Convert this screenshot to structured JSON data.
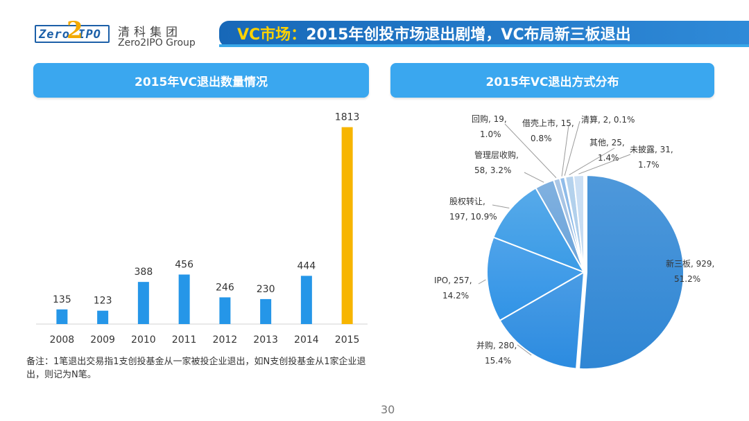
{
  "logo": {
    "mark_text": "Zero",
    "mark_two": "2",
    "mark_ipo": "IPO",
    "cn": "清科集团",
    "en": "Zero2IPO Group"
  },
  "header": {
    "title_highlight": "VC市场：",
    "title_rest": "2015年创投市场退出剧增，VC布局新三板退出"
  },
  "colors": {
    "bar": "#2596e8",
    "bar_highlight": "#f7b500",
    "header_blue": "#3aa7ef",
    "title_blue": "#1768b8"
  },
  "left_panel": {
    "title": "2015年VC退出数量情况"
  },
  "right_panel": {
    "title": "2015年VC退出方式分布"
  },
  "chart_data": [
    {
      "type": "bar",
      "categories": [
        "2008",
        "2009",
        "2010",
        "2011",
        "2012",
        "2013",
        "2014",
        "2015"
      ],
      "values": [
        135,
        123,
        388,
        456,
        246,
        230,
        444,
        1813
      ],
      "highlight_index": 7,
      "ylim": [
        0,
        1900
      ],
      "grid": false
    },
    {
      "type": "pie",
      "slices": [
        {
          "label": "新三板",
          "value": 929,
          "percent": "51.2%",
          "text": [
            "新三板, 929,",
            "51.2%"
          ],
          "color": "#2f86d4"
        },
        {
          "label": "并购",
          "value": 280,
          "percent": "15.4%",
          "text": [
            "并购, 280,",
            "15.4%"
          ],
          "color": "#2b8be0"
        },
        {
          "label": "IPO",
          "value": 257,
          "percent": "14.2%",
          "text": [
            "IPO, 257,",
            "14.2%"
          ],
          "color": "#3093e6"
        },
        {
          "label": "股权转让",
          "value": 197,
          "percent": "10.9%",
          "text": [
            "股权转让,",
            "197, 10.9%"
          ],
          "color": "#3a9be6"
        },
        {
          "label": "管理层收购",
          "value": 58,
          "percent": "3.2%",
          "text": [
            "管理层收购,",
            "58, 3.2%"
          ],
          "color": "#6aa3da"
        },
        {
          "label": "回购",
          "value": 19,
          "percent": "1.0%",
          "text": [
            "回购, 19,",
            "1.0%"
          ],
          "color": "#9cbde2"
        },
        {
          "label": "借壳上市",
          "value": 15,
          "percent": "0.8%",
          "text": [
            "借壳上市, 15,",
            "0.8%"
          ],
          "color": "#7fb2e6"
        },
        {
          "label": "清算",
          "value": 2,
          "percent": "0.1%",
          "text": [
            "清算, 2, 0.1%"
          ],
          "color": "#5aa0e0"
        },
        {
          "label": "其他",
          "value": 25,
          "percent": "1.4%",
          "text": [
            "其他, 25,",
            "1.4%"
          ],
          "color": "#a9cbea"
        },
        {
          "label": "未披露",
          "value": 31,
          "percent": "1.7%",
          "text": [
            "未披露, 31,",
            "1.7%"
          ],
          "color": "#c3daf2"
        }
      ]
    }
  ],
  "note": {
    "text": "备注：1笔退出交易指1支创投基金从一家被投企业退出，如N支创投基金从1家企业退出，则记为N笔。"
  },
  "footer": {
    "page_number": "30"
  }
}
